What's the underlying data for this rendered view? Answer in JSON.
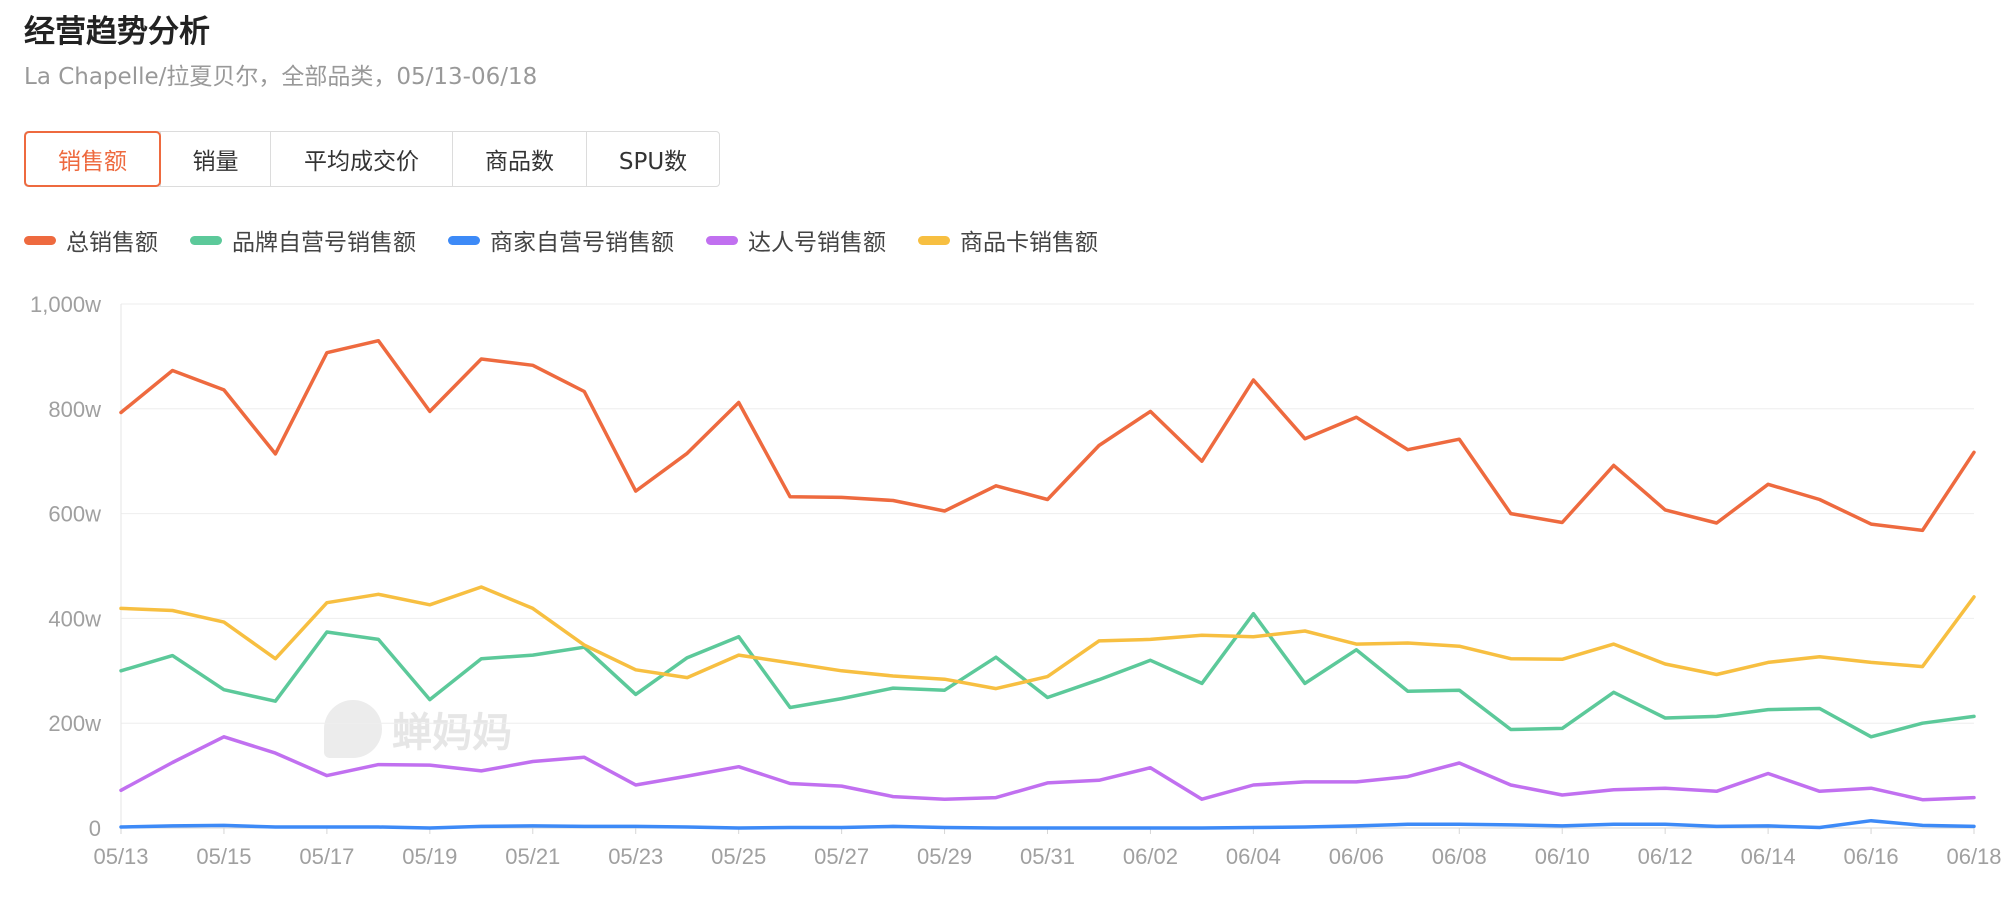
{
  "header": {
    "title": "经营趋势分析",
    "subtitle": "La Chapelle/拉夏贝尔，全部品类，05/13-06/18"
  },
  "tabs": [
    {
      "label": "销售额",
      "active": true
    },
    {
      "label": "销量",
      "active": false
    },
    {
      "label": "平均成交价",
      "active": false
    },
    {
      "label": "商品数",
      "active": false
    },
    {
      "label": "SPU数",
      "active": false
    }
  ],
  "watermark": {
    "text": "蝉妈妈"
  },
  "colors": {
    "accent": "#ee6a3f",
    "grid": "#eeeeee",
    "axis_text": "#a0a0a0"
  },
  "chart_data": {
    "type": "line",
    "title": "",
    "xlabel": "",
    "ylabel": "",
    "ylim": [
      0,
      1000
    ],
    "y_ticks": [
      0,
      200,
      400,
      600,
      800,
      1000
    ],
    "y_tick_labels": [
      "0",
      "200w",
      "400w",
      "600w",
      "800w",
      "1,000w"
    ],
    "grid": true,
    "legend_position": "top-left",
    "x": [
      "05/13",
      "05/14",
      "05/15",
      "05/16",
      "05/17",
      "05/18",
      "05/19",
      "05/20",
      "05/21",
      "05/22",
      "05/23",
      "05/24",
      "05/25",
      "05/26",
      "05/27",
      "05/28",
      "05/29",
      "05/30",
      "05/31",
      "06/01",
      "06/02",
      "06/03",
      "06/04",
      "06/05",
      "06/06",
      "06/07",
      "06/08",
      "06/09",
      "06/10",
      "06/11",
      "06/12",
      "06/13",
      "06/14",
      "06/15",
      "06/16",
      "06/17",
      "06/18"
    ],
    "x_tick_labels": [
      "05/13",
      "05/15",
      "05/17",
      "05/19",
      "05/21",
      "05/23",
      "05/25",
      "05/27",
      "05/29",
      "05/31",
      "06/02",
      "06/04",
      "06/06",
      "06/08",
      "06/10",
      "06/12",
      "06/14",
      "06/16",
      "06/18"
    ],
    "series": [
      {
        "name": "总销售额",
        "color": "#ee6a3f",
        "values": [
          793,
          873,
          836,
          714,
          907,
          930,
          795,
          895,
          883,
          833,
          643,
          715,
          812,
          632,
          631,
          625,
          605,
          653,
          627,
          730,
          795,
          700,
          855,
          743,
          784,
          722,
          742,
          600,
          583,
          692,
          607,
          582,
          656,
          627,
          580,
          568,
          717
        ]
      },
      {
        "name": "品牌自营号销售额",
        "color": "#5cc99a",
        "values": [
          300,
          329,
          264,
          242,
          374,
          360,
          245,
          323,
          330,
          345,
          255,
          325,
          365,
          230,
          247,
          267,
          263,
          326,
          249,
          283,
          320,
          276,
          409,
          276,
          340,
          261,
          263,
          188,
          190,
          259,
          210,
          213,
          226,
          228,
          174,
          200,
          213
        ]
      },
      {
        "name": "商家自营号销售额",
        "color": "#3d8af7",
        "values": [
          2,
          4,
          5,
          2,
          2,
          2,
          0,
          3,
          4,
          3,
          3,
          2,
          0,
          1,
          1,
          3,
          1,
          0,
          0,
          0,
          0,
          0,
          1,
          2,
          4,
          7,
          7,
          6,
          4,
          7,
          7,
          3,
          4,
          1,
          14,
          5,
          3
        ]
      },
      {
        "name": "达人号销售额",
        "color": "#c170f0",
        "values": [
          72,
          125,
          174,
          143,
          100,
          121,
          120,
          109,
          127,
          135,
          82,
          99,
          117,
          85,
          80,
          60,
          55,
          58,
          86,
          91,
          115,
          55,
          82,
          88,
          88,
          98,
          124,
          82,
          63,
          73,
          76,
          70,
          104,
          70,
          76,
          54,
          58
        ]
      },
      {
        "name": "商品卡销售额",
        "color": "#f7bf41",
        "values": [
          419,
          415,
          393,
          323,
          430,
          446,
          426,
          460,
          419,
          349,
          302,
          287,
          330,
          315,
          300,
          290,
          284,
          266,
          289,
          357,
          360,
          368,
          365,
          376,
          351,
          353,
          347,
          323,
          322,
          351,
          313,
          293,
          316,
          327,
          316,
          308,
          441
        ]
      }
    ]
  }
}
